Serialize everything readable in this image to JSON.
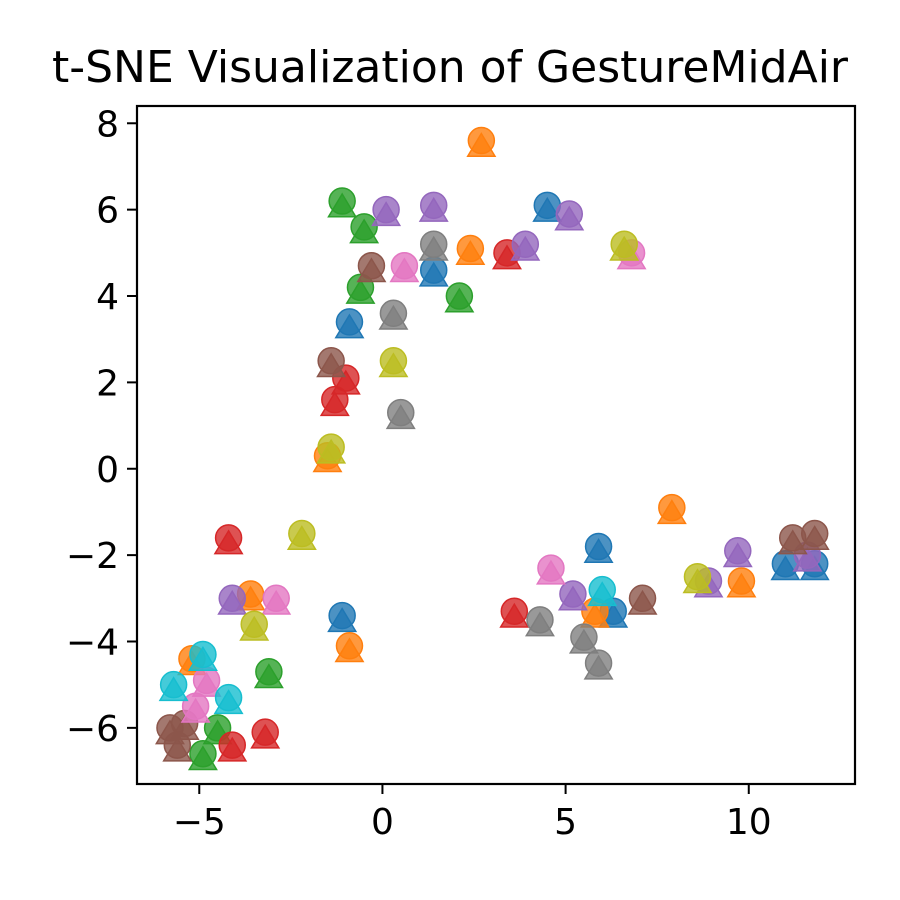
{
  "chart_data": {
    "type": "scatter",
    "title": "t-SNE Visualization of GestureMidAir",
    "xlabel": "",
    "ylabel": "",
    "xlim": [
      -6.7,
      12.9
    ],
    "ylim": [
      -7.3,
      8.4
    ],
    "xticks": [
      -5,
      0,
      5,
      10
    ],
    "yticks": [
      -6,
      -4,
      -2,
      0,
      2,
      4,
      6,
      8
    ],
    "xtick_labels": [
      "−5",
      "0",
      "5",
      "10"
    ],
    "ytick_labels": [
      "−6",
      "−4",
      "−2",
      "0",
      "2",
      "4",
      "6",
      "8"
    ],
    "grid": false,
    "legend": "none",
    "marker_styles": [
      "circle",
      "triangle"
    ],
    "series": [
      {
        "color": "#1f77b4",
        "points": [
          [
            4.5,
            6.1
          ],
          [
            1.4,
            4.6
          ],
          [
            -0.9,
            3.4
          ],
          [
            5.9,
            -1.8
          ],
          [
            6.3,
            -3.3
          ],
          [
            11.0,
            -2.2
          ],
          [
            11.8,
            -2.2
          ],
          [
            -1.1,
            -3.4
          ]
        ]
      },
      {
        "color": "#ff7f0e",
        "points": [
          [
            2.7,
            7.6
          ],
          [
            2.4,
            5.1
          ],
          [
            -1.5,
            0.3
          ],
          [
            7.9,
            -0.9
          ],
          [
            9.8,
            -2.6
          ],
          [
            5.8,
            -3.3
          ],
          [
            -3.6,
            -2.9
          ],
          [
            -5.2,
            -4.4
          ],
          [
            -0.9,
            -4.1
          ]
        ]
      },
      {
        "color": "#2ca02c",
        "points": [
          [
            -1.1,
            6.2
          ],
          [
            -0.5,
            5.6
          ],
          [
            -0.6,
            4.2
          ],
          [
            2.1,
            4.0
          ],
          [
            -3.1,
            -4.7
          ],
          [
            -4.5,
            -6.0
          ],
          [
            -4.9,
            -6.6
          ]
        ]
      },
      {
        "color": "#d62728",
        "points": [
          [
            3.4,
            5.0
          ],
          [
            -1.0,
            2.1
          ],
          [
            -1.3,
            1.6
          ],
          [
            -4.2,
            -1.6
          ],
          [
            3.6,
            -3.3
          ],
          [
            -3.2,
            -6.1
          ],
          [
            -4.1,
            -6.4
          ]
        ]
      },
      {
        "color": "#9467bd",
        "points": [
          [
            0.1,
            6.0
          ],
          [
            1.4,
            6.1
          ],
          [
            3.9,
            5.2
          ],
          [
            5.1,
            5.9
          ],
          [
            9.7,
            -1.9
          ],
          [
            8.9,
            -2.6
          ],
          [
            5.2,
            -2.9
          ],
          [
            11.6,
            -2.0
          ],
          [
            -4.1,
            -3.0
          ]
        ]
      },
      {
        "color": "#8c564b",
        "points": [
          [
            -0.3,
            4.7
          ],
          [
            -1.4,
            2.5
          ],
          [
            11.2,
            -1.6
          ],
          [
            11.8,
            -1.5
          ],
          [
            7.1,
            -3.0
          ],
          [
            -5.4,
            -5.9
          ],
          [
            -5.8,
            -6.0
          ],
          [
            -5.6,
            -6.4
          ]
        ]
      },
      {
        "color": "#e377c2",
        "points": [
          [
            0.6,
            4.7
          ],
          [
            6.8,
            5.0
          ],
          [
            4.6,
            -2.3
          ],
          [
            -2.9,
            -3.0
          ],
          [
            -4.8,
            -4.9
          ],
          [
            -5.1,
            -5.5
          ]
        ]
      },
      {
        "color": "#7f7f7f",
        "points": [
          [
            1.4,
            5.2
          ],
          [
            0.3,
            3.6
          ],
          [
            0.5,
            1.3
          ],
          [
            4.3,
            -3.5
          ],
          [
            5.5,
            -3.9
          ],
          [
            5.9,
            -4.5
          ]
        ]
      },
      {
        "color": "#bcbd22",
        "points": [
          [
            6.6,
            5.2
          ],
          [
            0.3,
            2.5
          ],
          [
            -1.4,
            0.5
          ],
          [
            -2.2,
            -1.5
          ],
          [
            8.6,
            -2.5
          ],
          [
            -3.5,
            -3.6
          ]
        ]
      },
      {
        "color": "#17becf",
        "points": [
          [
            6.0,
            -2.8
          ],
          [
            -4.9,
            -4.3
          ],
          [
            -5.7,
            -5.0
          ],
          [
            -4.2,
            -5.3
          ]
        ]
      }
    ]
  }
}
